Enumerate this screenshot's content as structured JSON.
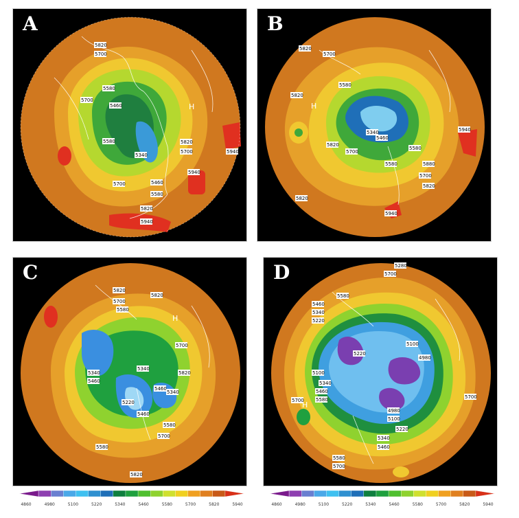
{
  "panels": [
    {
      "letter": "A",
      "high_marker": "H",
      "contour_labels": [
        "5820",
        "5700",
        "5580",
        "5460",
        "5580",
        "5340",
        "5700",
        "5820",
        "5460",
        "5940",
        "5940",
        "5700",
        "5580",
        "5820",
        "5940",
        "5700"
      ]
    },
    {
      "letter": "B",
      "high_marker": "H",
      "contour_labels": [
        "5820",
        "5700",
        "5580",
        "5820",
        "5340",
        "5460",
        "5940",
        "5580",
        "5700",
        "5880",
        "5580",
        "5820",
        "5940",
        "5820",
        "5700",
        "5820"
      ]
    },
    {
      "letter": "C",
      "high_marker": "H",
      "contour_labels": [
        "5820",
        "5700",
        "5580",
        "5820",
        "5700",
        "5340",
        "5460",
        "5820",
        "5340",
        "5460",
        "5220",
        "5340",
        "5460",
        "5580",
        "5700",
        "5580",
        "5820"
      ]
    },
    {
      "letter": "D",
      "high_marker": "H",
      "contour_labels": [
        "5280",
        "5700",
        "5580",
        "5460",
        "5340",
        "5220",
        "5220",
        "5100",
        "5100",
        "4980",
        "5340",
        "5460",
        "5580",
        "5700",
        "4980",
        "5100",
        "5220",
        "5340",
        "5460",
        "5580",
        "5700",
        "5700"
      ]
    }
  ],
  "colorbar": {
    "ticks": [
      "4860",
      "4980",
      "5100",
      "5220",
      "5340",
      "5460",
      "5580",
      "5700",
      "5820",
      "5940"
    ],
    "colors": [
      "#7a1a8c",
      "#8e3fb0",
      "#6a7fd0",
      "#4aa8e8",
      "#3fc0f0",
      "#2f90d0",
      "#1f6fb8",
      "#0f7f3f",
      "#1fa03f",
      "#4fbf2f",
      "#8fd22f",
      "#cfe02f",
      "#f0d020",
      "#f0a020",
      "#e08020",
      "#c85a18",
      "#d83018"
    ]
  },
  "legend": {
    "scale_colors": {
      "low": "#7a1a8c",
      "mid": "#1fa03f",
      "high": "#d83018"
    }
  }
}
